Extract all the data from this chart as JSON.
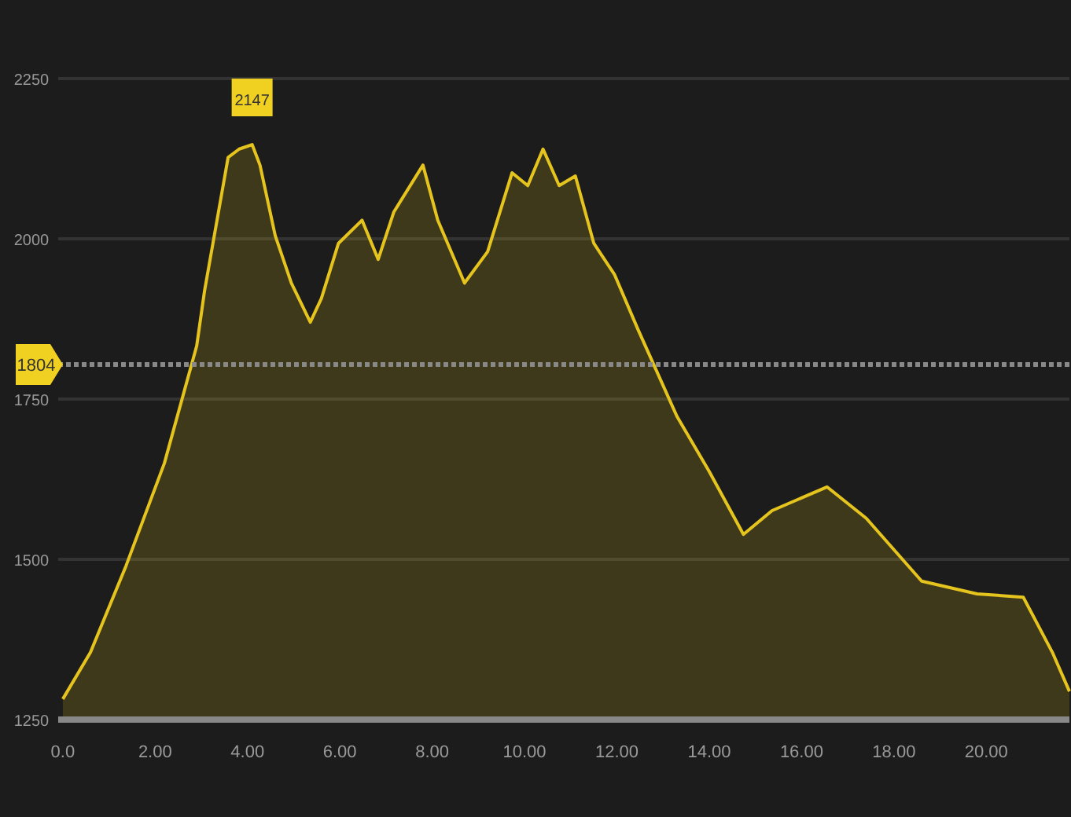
{
  "chart_data": {
    "type": "area",
    "color": "#e6c41e",
    "x": [
      0,
      0.6,
      1.37,
      2.2,
      2.9,
      3.07,
      3.58,
      3.82,
      4.1,
      4.27,
      4.6,
      4.95,
      5.36,
      5.6,
      5.97,
      6.48,
      6.83,
      7.17,
      7.8,
      8.12,
      8.7,
      9.2,
      9.73,
      10.07,
      10.4,
      10.75,
      11.1,
      11.5,
      11.95,
      12.46,
      13.3,
      14.0,
      14.74,
      15.36,
      16.55,
      17.4,
      18.6,
      19.8,
      20.8,
      21.43,
      21.8
    ],
    "values": [
      1282,
      1355,
      1490,
      1650,
      1833,
      1919,
      2127,
      2140,
      2147,
      2115,
      2005,
      1931,
      1870,
      1907,
      1993,
      2029,
      1968,
      2042,
      2115,
      2029,
      1931,
      1980,
      2103,
      2083,
      2140,
      2083,
      2098,
      1993,
      1944,
      1858,
      1723,
      1637,
      1539,
      1576,
      1613,
      1564,
      1466,
      1446,
      1441,
      1355,
      1294
    ],
    "xlim": [
      -0.1,
      21.8
    ],
    "xticks": [
      {
        "value": 0,
        "label": "0.0"
      },
      {
        "value": 2,
        "label": "2.00"
      },
      {
        "value": 4,
        "label": "4.00"
      },
      {
        "value": 6,
        "label": "6.00"
      },
      {
        "value": 8,
        "label": "8.00"
      },
      {
        "value": 10,
        "label": "10.00"
      },
      {
        "value": 12,
        "label": "12.00"
      },
      {
        "value": 14,
        "label": "14.00"
      },
      {
        "value": 16,
        "label": "16.00"
      },
      {
        "value": 18,
        "label": "18.00"
      },
      {
        "value": 20,
        "label": "20.00"
      }
    ],
    "ylim": [
      1250,
      2250
    ],
    "yticks": [
      1250,
      1500,
      1750,
      2000,
      2250
    ],
    "grid": "y",
    "ref_lines": [
      {
        "axis": "y",
        "value": 1804,
        "label": "1804",
        "line_style": "dashed"
      }
    ],
    "annotations": [
      {
        "text": "2147",
        "x": 4.1,
        "y": 2147
      }
    ]
  }
}
